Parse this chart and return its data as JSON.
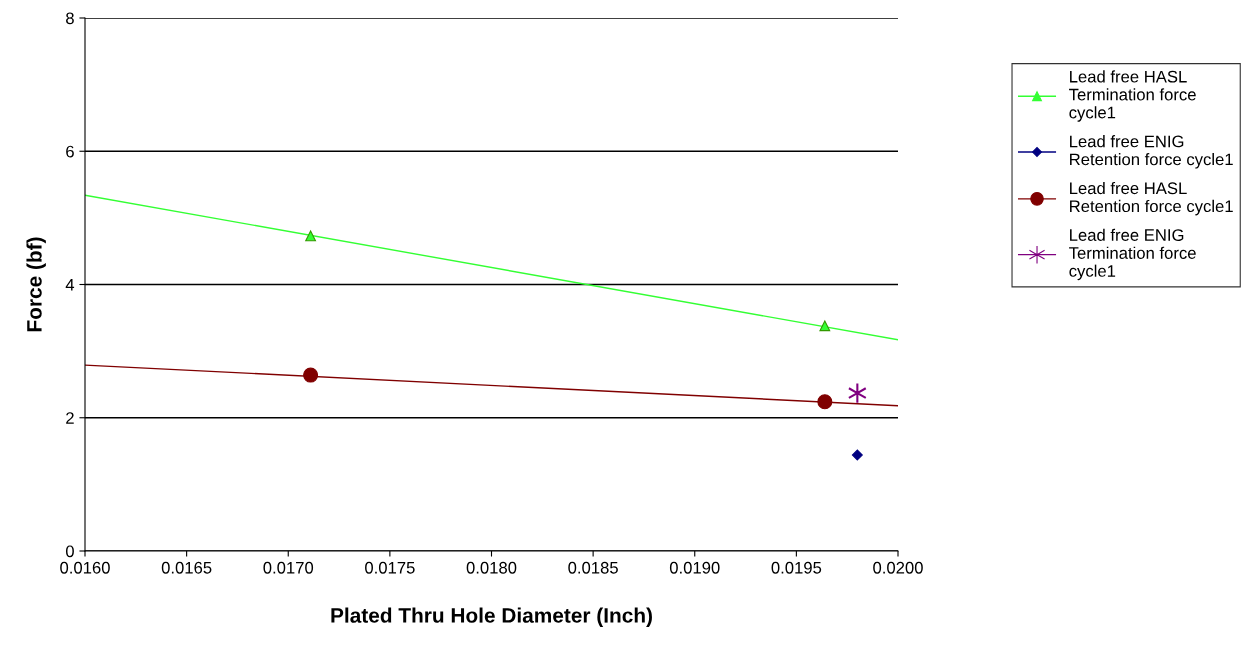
{
  "chart_data": {
    "type": "scatter",
    "xlabel": "Plated Thru Hole Diameter (Inch)",
    "ylabel": "Force (bf)",
    "xlim": [
      0.016,
      0.02
    ],
    "ylim": [
      0,
      8
    ],
    "xticks": [
      {
        "value": 0.016,
        "label": "0.0160"
      },
      {
        "value": 0.0165,
        "label": "0.0165"
      },
      {
        "value": 0.017,
        "label": "0.0170"
      },
      {
        "value": 0.0175,
        "label": "0.0175"
      },
      {
        "value": 0.018,
        "label": "0.0180"
      },
      {
        "value": 0.0185,
        "label": "0.0185"
      },
      {
        "value": 0.019,
        "label": "0.0190"
      },
      {
        "value": 0.0195,
        "label": "0.0195"
      },
      {
        "value": 0.02,
        "label": "0.0200"
      }
    ],
    "yticks": [
      0,
      2,
      4,
      6,
      8
    ],
    "grid": "y",
    "legend": "right",
    "series": [
      {
        "name": "Lead free HASL Termination force cycle1",
        "marker": "triangle",
        "color": "#33ff33",
        "x": [
          0.01711,
          0.01964
        ],
        "values": [
          4.73,
          3.38
        ]
      },
      {
        "name": "Lead free ENIG Retention force cycle1",
        "marker": "diamond",
        "color": "#000080",
        "x": [
          0.0198
        ],
        "values": [
          1.44
        ]
      },
      {
        "name": "Lead free HASL Retention force cycle1",
        "marker": "circle",
        "color": "#800000",
        "x": [
          0.01711,
          0.01964
        ],
        "values": [
          2.64,
          2.24
        ]
      },
      {
        "name": "Lead free ENIG Termination force cycle1",
        "marker": "cross",
        "color": "#800080",
        "x": [
          0.0198
        ],
        "values": [
          2.37
        ]
      },
      {
        "type": "line",
        "marker": "none",
        "color": "#33ff33",
        "x": [
          0.016,
          0.02
        ],
        "values": [
          5.34,
          3.17
        ]
      },
      {
        "type": "line",
        "marker": "none",
        "color": "#800000",
        "x": [
          0.016,
          0.02
        ],
        "values": [
          2.79,
          2.18
        ]
      }
    ]
  }
}
